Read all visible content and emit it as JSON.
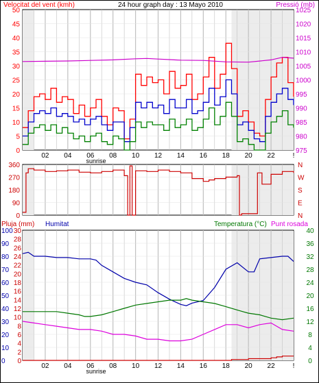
{
  "colors": {
    "wind": "#ff0000",
    "wind_avg": "#0000cc",
    "gust_fill": "#008000",
    "pressure": "#cc00cc",
    "direction": "#cc0000",
    "rain": "#cc0000",
    "humidity": "#0000aa",
    "temperature": "#007700",
    "dewpoint": "#dd00dd",
    "grid": "#c0c0c0",
    "night": "#c8c8c8"
  },
  "chart_data": [
    {
      "type": "line",
      "title": "24 hour graph day : 13 Mayo 2010",
      "left_label": "Velocitat del vent (kmh)",
      "right_label": "Pressió (mb)",
      "x_ticks": [
        "02",
        "04",
        "06",
        "08",
        "10",
        "12",
        "14",
        "16",
        "18",
        "20",
        "22",
        "!"
      ],
      "marker": "sunrise",
      "y_ticks_left": [
        "0",
        "5",
        "10",
        "15",
        "20",
        "25",
        "30",
        "35",
        "40",
        "45",
        "50"
      ],
      "y_ticks_right": [
        "975",
        "980",
        "985",
        "990",
        "995",
        "1000",
        "1005",
        "1010",
        "1015",
        "1020",
        "1025"
      ],
      "ylim_left": [
        0,
        50
      ],
      "ylim_right": [
        975,
        1025
      ],
      "series": [
        {
          "key": "wind_gust",
          "color": "#ff0000",
          "x": [
            0,
            0.5,
            1,
            1.5,
            2,
            2.5,
            3,
            3.5,
            4,
            4.5,
            5,
            5.5,
            6,
            6.5,
            7,
            7.5,
            8,
            8.5,
            9,
            9.5,
            10,
            10.5,
            11,
            11.5,
            12,
            12.5,
            13,
            13.5,
            14,
            14.5,
            15,
            15.5,
            16,
            16.5,
            17,
            17.5,
            18,
            18.5,
            19,
            19.5,
            20,
            20.5,
            21,
            21.5,
            22,
            22.5,
            23,
            23.5,
            24
          ],
          "y": [
            8,
            14,
            19,
            20,
            18,
            22,
            17,
            19,
            18,
            13,
            16,
            12,
            15,
            18,
            12,
            9,
            15,
            14,
            4,
            11,
            27,
            23,
            26,
            24,
            25,
            20,
            28,
            22,
            23,
            27,
            18,
            20,
            26,
            33,
            22,
            27,
            38,
            29,
            12,
            14,
            10,
            6,
            5,
            18,
            26,
            31,
            33,
            24,
            19
          ]
        },
        {
          "key": "wind_avg",
          "color": "#0000cc",
          "x": [
            0,
            0.5,
            1,
            1.5,
            2,
            2.5,
            3,
            3.5,
            4,
            4.5,
            5,
            5.5,
            6,
            6.5,
            7,
            7.5,
            8,
            8.5,
            9,
            9.5,
            10,
            10.5,
            11,
            11.5,
            12,
            12.5,
            13,
            13.5,
            14,
            14.5,
            15,
            15.5,
            16,
            16.5,
            17,
            17.5,
            18,
            18.5,
            19,
            19.5,
            20,
            20.5,
            21,
            21.5,
            22,
            22.5,
            23,
            23.5,
            24
          ],
          "y": [
            5,
            10,
            13,
            14,
            13,
            15,
            12,
            13,
            12,
            10,
            11,
            9,
            11,
            12,
            9,
            7,
            10,
            10,
            3,
            8,
            17,
            15,
            17,
            15,
            16,
            13,
            18,
            15,
            15,
            18,
            13,
            14,
            17,
            22,
            16,
            19,
            25,
            20,
            9,
            10,
            7,
            4,
            3,
            12,
            17,
            20,
            22,
            18,
            16
          ]
        },
        {
          "key": "wind_speed",
          "color": "#008000",
          "x": [
            0,
            0.5,
            1,
            1.5,
            2,
            2.5,
            3,
            3.5,
            4,
            4.5,
            5,
            5.5,
            6,
            6.5,
            7,
            7.5,
            8,
            8.5,
            9,
            9.5,
            10,
            10.5,
            11,
            11.5,
            12,
            12.5,
            13,
            13.5,
            14,
            14.5,
            15,
            15.5,
            16,
            16.5,
            17,
            17.5,
            18,
            18.5,
            19,
            19.5,
            20,
            20.5,
            21,
            21.5,
            22,
            22.5,
            23,
            23.5,
            24
          ],
          "y": [
            2,
            6,
            8,
            9,
            7,
            9,
            6,
            8,
            6,
            4,
            5,
            3,
            5,
            6,
            3,
            2,
            5,
            4,
            0,
            3,
            10,
            8,
            10,
            9,
            9,
            7,
            11,
            8,
            9,
            11,
            7,
            8,
            11,
            15,
            9,
            12,
            17,
            12,
            3,
            4,
            2,
            0,
            0,
            6,
            10,
            12,
            14,
            9,
            8
          ]
        },
        {
          "key": "pressure",
          "axis": "right",
          "color": "#cc00cc",
          "x": [
            0,
            2,
            4,
            6,
            8,
            10,
            11,
            12,
            14,
            16,
            18,
            20,
            22,
            23,
            24
          ],
          "y": [
            1006.5,
            1006.6,
            1006.7,
            1006.9,
            1007.1,
            1007.5,
            1007.6,
            1007.4,
            1007.0,
            1006.9,
            1006.4,
            1006.3,
            1007.1,
            1008.0,
            1007.7
          ]
        }
      ]
    },
    {
      "type": "line",
      "ylabels_left": [
        "360",
        "270",
        "180",
        "90",
        "0"
      ],
      "ylabels_right": [
        "N",
        "W",
        "S",
        "E",
        "N"
      ],
      "ylim": [
        0,
        360
      ],
      "series": [
        {
          "key": "wind_direction",
          "color": "#cc0000",
          "x": [
            0,
            0.3,
            0.5,
            1,
            2,
            3,
            4,
            5,
            6,
            7,
            8,
            9,
            9.3,
            9.5,
            9.7,
            10,
            11,
            12,
            13,
            14,
            15,
            16,
            16.5,
            17,
            18,
            19,
            19.2,
            19.4,
            20.5,
            20.8,
            21.2,
            22,
            23,
            24
          ],
          "y": [
            20,
            300,
            330,
            320,
            310,
            315,
            320,
            305,
            300,
            310,
            320,
            280,
            0,
            350,
            0,
            315,
            310,
            320,
            310,
            300,
            260,
            240,
            250,
            260,
            270,
            280,
            0,
            10,
            10,
            300,
            220,
            290,
            310,
            300
          ]
        }
      ]
    },
    {
      "type": "line",
      "left_labels": [
        "Pluja (mm)",
        "Humitat"
      ],
      "right_labels": [
        "Temperatura (°C)",
        "Punt rosada"
      ],
      "x_ticks": [
        "02",
        "04",
        "06",
        "08",
        "10",
        "12",
        "14",
        "16",
        "18",
        "20",
        "22",
        "!"
      ],
      "marker": "sunrise",
      "y_ticks_humidity": [
        "0",
        "10",
        "20",
        "30",
        "40",
        "50",
        "60",
        "70",
        "80",
        "90",
        "100"
      ],
      "y_ticks_rain": [
        "0",
        "2",
        "4",
        "6",
        "8",
        "10",
        "12",
        "14",
        "16",
        "18",
        "20",
        "22",
        "24",
        "26",
        "28",
        "30"
      ],
      "y_ticks_temp": [
        "0",
        "4",
        "8",
        "12",
        "16",
        "20",
        "24",
        "28",
        "32",
        "36",
        "40"
      ],
      "ylim_humidity": [
        0,
        100
      ],
      "ylim_rain": [
        0,
        30
      ],
      "ylim_temp": [
        0,
        40
      ],
      "series": [
        {
          "key": "humidity",
          "axis": "humidity",
          "color": "#0000aa",
          "x": [
            0,
            0.5,
            1,
            2,
            3,
            4,
            5,
            6,
            6.5,
            7,
            8,
            9,
            10,
            11,
            12,
            13,
            14,
            14.5,
            15,
            16,
            17,
            18,
            19,
            20,
            20.5,
            21,
            22,
            23,
            23.5,
            24
          ],
          "y": [
            82,
            83,
            80,
            80,
            79,
            79,
            78,
            78,
            77,
            73,
            68,
            63,
            60,
            58,
            52,
            47,
            43,
            42,
            44,
            46,
            56,
            70,
            75,
            68,
            68,
            78,
            79,
            80,
            80,
            76
          ]
        },
        {
          "key": "temperature",
          "axis": "temp",
          "color": "#007700",
          "x": [
            0,
            1,
            2,
            3,
            4,
            5,
            5.5,
            6,
            7,
            8,
            9,
            10,
            11,
            12,
            13,
            14,
            14.5,
            15,
            16,
            17,
            18,
            19,
            19.5,
            20,
            21,
            22,
            23,
            24
          ],
          "y": [
            15,
            15,
            15,
            15,
            14.5,
            14,
            13.5,
            13.5,
            14,
            15,
            16,
            17,
            17.5,
            18,
            18.5,
            18.5,
            19,
            18.5,
            18,
            17.5,
            16.5,
            15.5,
            15,
            14.5,
            14,
            13,
            12.5,
            13
          ]
        },
        {
          "key": "dewpoint",
          "axis": "temp",
          "color": "#dd00dd",
          "x": [
            0,
            1,
            2,
            3,
            4,
            5,
            6,
            7,
            8,
            9,
            10,
            11,
            12,
            13,
            14,
            15,
            16,
            17,
            18,
            19,
            20,
            21,
            22,
            23,
            24
          ],
          "y": [
            12,
            11.5,
            11,
            10.5,
            10,
            9.5,
            9.5,
            9,
            8,
            8,
            7.5,
            6.5,
            6.5,
            6,
            6,
            6.5,
            8,
            9.5,
            11,
            11,
            10,
            11,
            11.5,
            9.5,
            9
          ]
        },
        {
          "key": "rain",
          "axis": "rain",
          "color": "#cc0000",
          "x": [
            0,
            18,
            18.5,
            19,
            20,
            21,
            22,
            22.5,
            23,
            24
          ],
          "y": [
            0,
            0,
            0.2,
            0.2,
            0.4,
            0.4,
            0.6,
            0.8,
            1.0,
            1.0
          ]
        }
      ]
    }
  ]
}
